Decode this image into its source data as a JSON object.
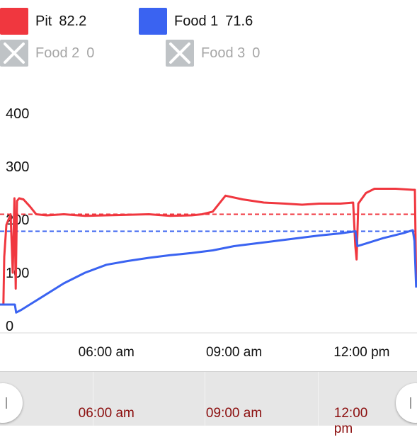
{
  "legend": [
    {
      "name": "Pit",
      "value": "82.2",
      "color": "#f0373f",
      "enabled": true
    },
    {
      "name": "Food 1",
      "value": "71.6",
      "color": "#3a63f1",
      "enabled": true
    },
    {
      "name": "Food 2",
      "value": "0",
      "color": "#bfc3c6",
      "enabled": false
    },
    {
      "name": "Food 3",
      "value": "0",
      "color": "#bfc3c6",
      "enabled": false
    }
  ],
  "chart_data": {
    "type": "line",
    "x_unit": "hours",
    "ylim": [
      0,
      400
    ],
    "yticks": [
      "0",
      "100",
      "200",
      "300",
      "400"
    ],
    "xticks": [
      {
        "t": 6,
        "label": "06:00 am"
      },
      {
        "t": 9,
        "label": "09:00 am"
      },
      {
        "t": 12,
        "label": "12:00 pm"
      }
    ],
    "xlim": [
      3.5,
      13.3
    ],
    "grid": false,
    "series": [
      {
        "name": "Pit",
        "color": "#f0373f",
        "points": [
          [
            3.5,
            40
          ],
          [
            3.58,
            40
          ],
          [
            3.6,
            130
          ],
          [
            3.65,
            190
          ],
          [
            3.75,
            210
          ],
          [
            3.8,
            100
          ],
          [
            3.84,
            240
          ],
          [
            3.87,
            70
          ],
          [
            3.9,
            235
          ],
          [
            3.95,
            240
          ],
          [
            4.05,
            238
          ],
          [
            4.2,
            225
          ],
          [
            4.35,
            210
          ],
          [
            4.6,
            208
          ],
          [
            5,
            210
          ],
          [
            5.5,
            207
          ],
          [
            6,
            208
          ],
          [
            6.5,
            209
          ],
          [
            7,
            210
          ],
          [
            7.5,
            207
          ],
          [
            8,
            208
          ],
          [
            8.25,
            210
          ],
          [
            8.5,
            215
          ],
          [
            8.8,
            245
          ],
          [
            9.2,
            238
          ],
          [
            9.7,
            232
          ],
          [
            10.2,
            230
          ],
          [
            10.6,
            228
          ],
          [
            11,
            230
          ],
          [
            11.5,
            230
          ],
          [
            11.8,
            232
          ],
          [
            11.85,
            150
          ],
          [
            11.88,
            125
          ],
          [
            11.92,
            230
          ],
          [
            12.1,
            250
          ],
          [
            12.3,
            258
          ],
          [
            12.8,
            258
          ],
          [
            13.2,
            256
          ],
          [
            13.25,
            256
          ],
          [
            13.28,
            82
          ]
        ]
      },
      {
        "name": "Food 1",
        "color": "#3a63f1",
        "points": [
          [
            3.5,
            40
          ],
          [
            3.85,
            40
          ],
          [
            3.88,
            25
          ],
          [
            4.0,
            30
          ],
          [
            4.2,
            40
          ],
          [
            4.5,
            55
          ],
          [
            5,
            80
          ],
          [
            5.5,
            100
          ],
          [
            6,
            115
          ],
          [
            6.5,
            122
          ],
          [
            7,
            128
          ],
          [
            7.5,
            133
          ],
          [
            8,
            137
          ],
          [
            8.5,
            142
          ],
          [
            9,
            150
          ],
          [
            9.5,
            155
          ],
          [
            10,
            160
          ],
          [
            10.5,
            165
          ],
          [
            11,
            170
          ],
          [
            11.5,
            174
          ],
          [
            11.85,
            178
          ],
          [
            11.9,
            150
          ],
          [
            12.1,
            155
          ],
          [
            12.5,
            165
          ],
          [
            13,
            175
          ],
          [
            13.2,
            180
          ],
          [
            13.24,
            160
          ],
          [
            13.28,
            72
          ]
        ]
      }
    ],
    "target_lines": [
      {
        "series": "Pit",
        "value": 210,
        "color": "#f0373f"
      },
      {
        "series": "Food 1",
        "value": 178,
        "color": "#3a63f1"
      }
    ]
  },
  "scrubber": {
    "labels": [
      {
        "t": 6,
        "label": "06:00 am"
      },
      {
        "t": 9,
        "label": "09:00 am"
      },
      {
        "t": 12,
        "label": "12:00 pm"
      }
    ]
  }
}
